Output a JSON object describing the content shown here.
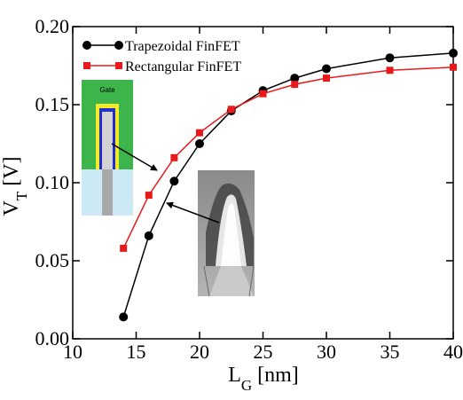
{
  "chart_data": {
    "type": "line",
    "xlabel": {
      "main": "L",
      "sub": "G",
      "unit": "[nm]"
    },
    "ylabel": {
      "main": "V",
      "sub": "T",
      "unit": "[V]"
    },
    "xlim": [
      10,
      40
    ],
    "ylim": [
      0.0,
      0.2
    ],
    "xticks": [
      10,
      15,
      20,
      25,
      30,
      35,
      40
    ],
    "yticks": [
      0.0,
      0.05,
      0.1,
      0.15,
      0.2
    ],
    "xtick_labels": [
      "10",
      "15",
      "20",
      "25",
      "30",
      "35",
      "40"
    ],
    "ytick_labels": [
      "0.00",
      "0.05",
      "0.10",
      "0.15",
      "0.20"
    ],
    "grid": false,
    "legend_position": "top-left",
    "series": [
      {
        "name": "Trapezoidal FinFET",
        "color": "#000000",
        "marker": "circle",
        "x": [
          14,
          16,
          18,
          20,
          22.5,
          25,
          27.5,
          30,
          35,
          40
        ],
        "y": [
          0.014,
          0.066,
          0.101,
          0.125,
          0.146,
          0.159,
          0.167,
          0.173,
          0.18,
          0.183
        ]
      },
      {
        "name": "Rectangular FinFET",
        "color": "#e8191a",
        "marker": "square",
        "x": [
          14,
          16,
          18,
          20,
          22.5,
          25,
          27.5,
          30,
          35,
          40
        ],
        "y": [
          0.058,
          0.092,
          0.116,
          0.132,
          0.147,
          0.157,
          0.163,
          0.167,
          0.172,
          0.174
        ]
      }
    ],
    "annotations": [
      {
        "kind": "image",
        "label": "Gate",
        "description_icon": "rectangular-fin-cross-section"
      },
      {
        "kind": "image",
        "description_icon": "trapezoidal-fin-tem-micrograph"
      }
    ]
  }
}
